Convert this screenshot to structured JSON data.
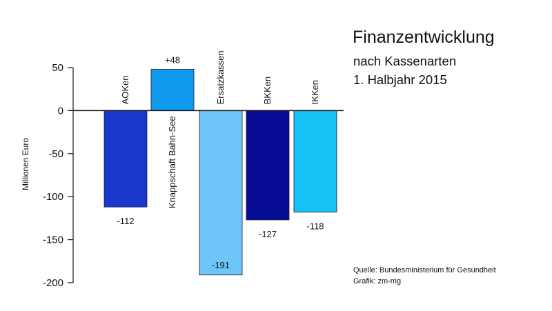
{
  "title": "Finanzentwicklung",
  "subtitle_line1": "nach Kassenarten",
  "subtitle_line2": "1. Halbjahr 2015",
  "source_line1": "Quelle: Bundesministerium für Gesundheit",
  "source_line2": "Grafik: zm-mg",
  "chart_data": {
    "type": "bar",
    "title": "Finanzentwicklung nach Kassenarten 1. Halbjahr 2015",
    "xlabel": "",
    "ylabel": "Millionen Euro",
    "ylim": [
      -200,
      50
    ],
    "yticks": [
      50,
      0,
      -50,
      -100,
      -150,
      -200
    ],
    "grid": false,
    "legend": "none",
    "categories": [
      "AOKen",
      "Knappschaft Bahn-See",
      "Ersatzkassen",
      "BKKen",
      "IKKen"
    ],
    "values": [
      -112,
      48,
      -191,
      -127,
      -118
    ],
    "value_labels": [
      "-112",
      "+48",
      "-191",
      "-127",
      "-118"
    ],
    "colors": [
      "#1a39cc",
      "#0f9af0",
      "#6ec5f8",
      "#070c94",
      "#16c2f6"
    ]
  }
}
